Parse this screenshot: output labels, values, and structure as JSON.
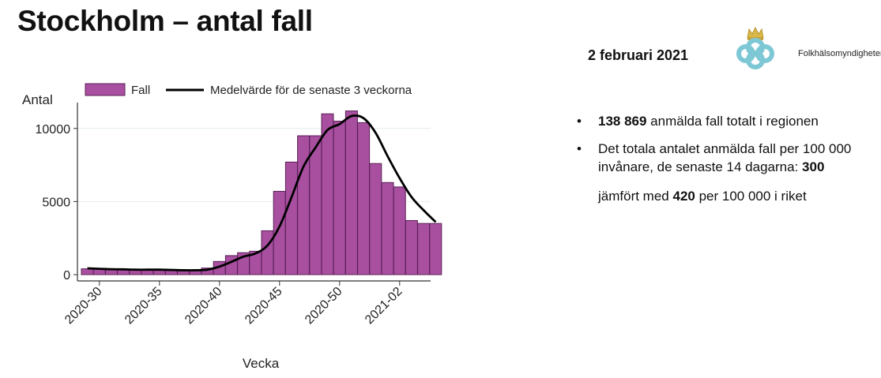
{
  "slide": {
    "title": "Stockholm – antal fall",
    "date": "2 februari 2021",
    "logo_text": "Folkhälsomyndigheten"
  },
  "facts": {
    "item1_value": "138 869",
    "item1_text": " anmälda fall totalt i regionen",
    "item2_text": "Det totala antalet anmälda fall per 100 000 invånare, de senaste 14 dagarna: ",
    "item2_value": "300",
    "comparison_prefix": "jämfört med ",
    "comparison_value": "420",
    "comparison_suffix": " per 100 000 i riket",
    "bullet": "•"
  },
  "colors": {
    "bar_fill": "#a84fa0",
    "bar_stroke": "#5a1f55",
    "line": "#000000",
    "grid": "#e6ecef",
    "logo_blue": "#7ec8d6",
    "logo_gold": "#d9b84a"
  },
  "chart_data": {
    "type": "bar",
    "ylabel": "Antal",
    "xlabel": "Vecka",
    "ylim": [
      0,
      11500
    ],
    "yticks": [
      0,
      5000,
      10000
    ],
    "grid": true,
    "legend_position": "top",
    "x_tick_labels": [
      "2020-30",
      "2020-35",
      "2020-40",
      "2020-45",
      "2020-50",
      "2021-02"
    ],
    "x_tick_indices": [
      1,
      6,
      11,
      16,
      21,
      26
    ],
    "weeks": [
      "2020-29",
      "2020-30",
      "2020-31",
      "2020-32",
      "2020-33",
      "2020-34",
      "2020-35",
      "2020-36",
      "2020-37",
      "2020-38",
      "2020-39",
      "2020-40",
      "2020-41",
      "2020-42",
      "2020-43",
      "2020-44",
      "2020-45",
      "2020-46",
      "2020-47",
      "2020-48",
      "2020-49",
      "2020-50",
      "2020-51",
      "2020-52",
      "2020-53",
      "2021-01",
      "2021-02",
      "2021-03",
      "2021-04",
      "2021-05"
    ],
    "series": [
      {
        "name": "Fall",
        "type": "bar",
        "values": [
          400,
          380,
          330,
          340,
          320,
          330,
          350,
          300,
          280,
          300,
          450,
          900,
          1300,
          1500,
          1600,
          3000,
          5700,
          7700,
          9500,
          9500,
          11000,
          10500,
          11200,
          10400,
          7600,
          6300,
          6000,
          3700,
          3500,
          3500
        ]
      },
      {
        "name": "Medelvärde för de senaste 3 veckorna",
        "type": "line",
        "values": [
          430,
          400,
          370,
          360,
          340,
          340,
          340,
          320,
          300,
          300,
          340,
          550,
          880,
          1230,
          1450,
          2000,
          3300,
          5300,
          7400,
          8700,
          9900,
          10300,
          10850,
          10700,
          9700,
          8100,
          6600,
          5300,
          4400,
          3600
        ]
      }
    ]
  }
}
